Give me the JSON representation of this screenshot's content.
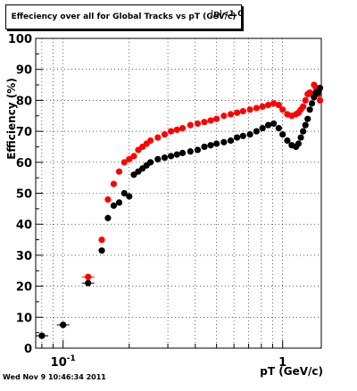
{
  "title": "Effeciency over all for Global Tracks vs pT (GeV/c)",
  "title_overlap_text": "|η|<1.0",
  "timestamp": "Wed Nov  9 10:46:34 2011",
  "chart_data": {
    "type": "scatter",
    "title": "Effeciency over all for Global Tracks vs pT (GeV/c)",
    "xlabel": "pT (GeV/c)",
    "ylabel": "Efficiency (%)",
    "x_scale": "log",
    "xlim": [
      0.075,
      1.5
    ],
    "ylim": [
      0,
      100
    ],
    "grid": true,
    "y_ticks": [
      0,
      10,
      20,
      30,
      40,
      50,
      60,
      70,
      80,
      90,
      100
    ],
    "x_tick_labels": [
      {
        "value": 0.1,
        "label": "10",
        "sup": "-1"
      },
      {
        "value": 1,
        "label": "1",
        "sup": ""
      }
    ],
    "series": [
      {
        "color": "#ff0000",
        "x": [
          0.08,
          0.1,
          0.13,
          0.15,
          0.16,
          0.17,
          0.18,
          0.19,
          0.2,
          0.21,
          0.22,
          0.23,
          0.24,
          0.25,
          0.27,
          0.29,
          0.31,
          0.33,
          0.35,
          0.38,
          0.41,
          0.44,
          0.47,
          0.5,
          0.54,
          0.58,
          0.62,
          0.66,
          0.71,
          0.76,
          0.81,
          0.86,
          0.91,
          0.96,
          1.0,
          1.05,
          1.1,
          1.15,
          1.18,
          1.21,
          1.24,
          1.27,
          1.3,
          1.33,
          1.36,
          1.39,
          1.42,
          1.45,
          1.48
        ],
        "y": [
          4,
          7.5,
          23,
          35,
          48,
          53,
          57,
          60,
          61,
          62,
          64,
          65,
          66,
          67,
          68,
          69,
          70,
          70.5,
          71,
          72,
          72.5,
          73,
          73.5,
          74,
          75,
          75.5,
          76,
          76.5,
          77,
          77.5,
          78,
          78.5,
          79,
          78.5,
          77,
          75.5,
          75,
          75.5,
          76,
          77,
          78,
          80,
          82,
          82.5,
          82,
          85,
          84,
          82,
          80
        ]
      },
      {
        "color": "#000000",
        "x": [
          0.08,
          0.1,
          0.13,
          0.15,
          0.16,
          0.17,
          0.18,
          0.19,
          0.2,
          0.21,
          0.22,
          0.23,
          0.24,
          0.25,
          0.27,
          0.29,
          0.31,
          0.33,
          0.35,
          0.38,
          0.41,
          0.44,
          0.47,
          0.5,
          0.54,
          0.58,
          0.62,
          0.66,
          0.71,
          0.76,
          0.81,
          0.86,
          0.91,
          0.96,
          1.0,
          1.05,
          1.1,
          1.15,
          1.18,
          1.21,
          1.24,
          1.27,
          1.3,
          1.33,
          1.36,
          1.39,
          1.42,
          1.45,
          1.48
        ],
        "y": [
          4,
          7.5,
          21,
          31.5,
          42,
          46,
          47,
          50,
          49,
          56,
          57,
          58,
          59,
          60,
          61,
          61.5,
          62,
          62.5,
          63,
          63.5,
          64,
          65,
          65.5,
          66,
          66.5,
          67,
          68,
          68.5,
          69,
          70,
          71,
          72,
          72.5,
          71,
          69,
          67,
          65.5,
          65,
          66,
          68,
          70,
          72,
          74,
          77,
          79,
          81,
          82.5,
          82.5,
          84
        ]
      }
    ]
  }
}
